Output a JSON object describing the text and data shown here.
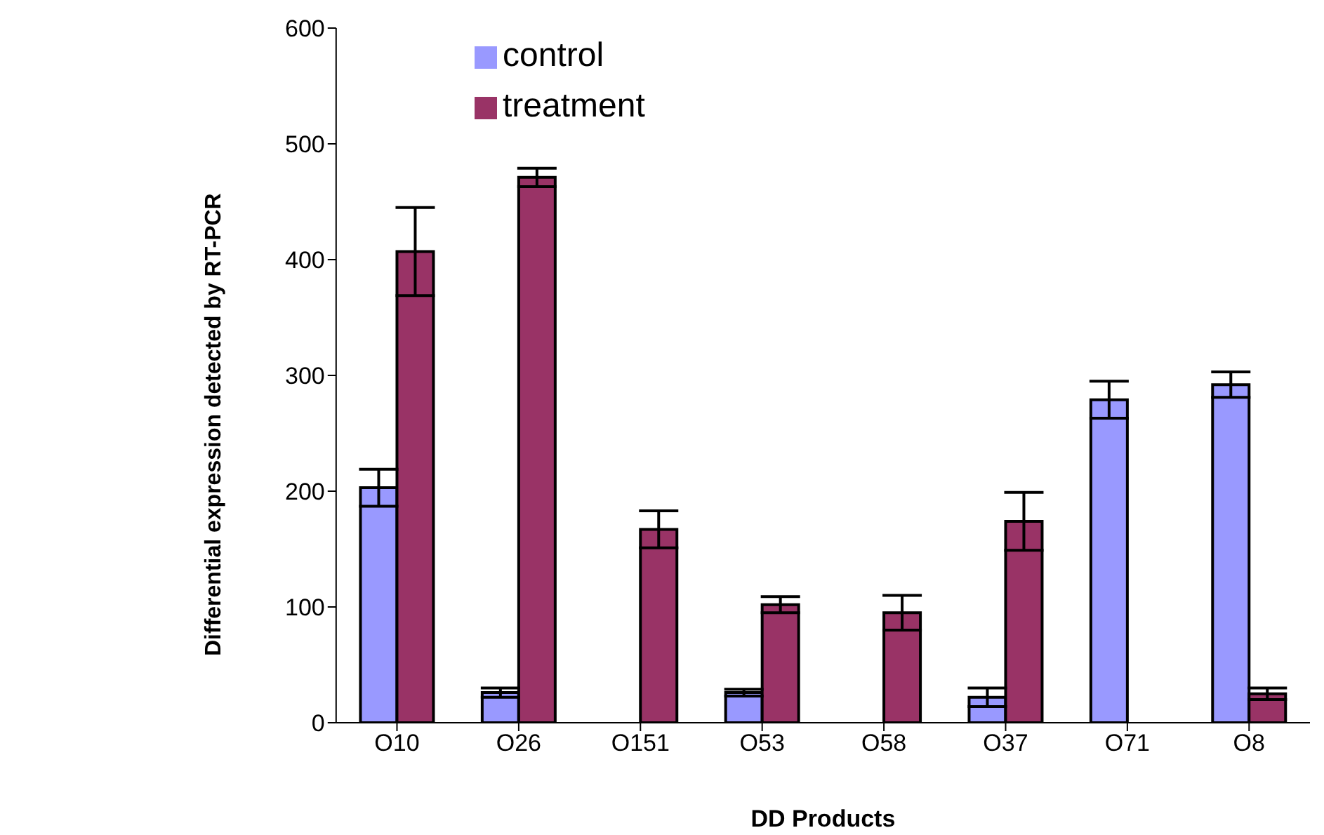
{
  "chart_data": {
    "type": "bar",
    "xlabel": "DD Products",
    "ylabel": "Differential expression detected by RT-PCR",
    "categories": [
      "O10",
      "O26",
      "O151",
      "O53",
      "O58",
      "O37",
      "O71",
      "O8"
    ],
    "series": [
      {
        "name": "control",
        "color": "#9999ff",
        "values": [
          203,
          26,
          0,
          26,
          0,
          22,
          279,
          292
        ],
        "errors": [
          16,
          4,
          0,
          3,
          0,
          8,
          16,
          11
        ]
      },
      {
        "name": "treatment",
        "color": "#993366",
        "values": [
          407,
          471,
          167,
          102,
          95,
          174,
          0,
          25
        ],
        "errors": [
          38,
          8,
          16,
          7,
          15,
          25,
          0,
          5
        ]
      }
    ],
    "ylim": [
      0,
      600
    ],
    "yticks": [
      0,
      100,
      200,
      300,
      400,
      500,
      600
    ],
    "grid": false,
    "legend": "top"
  }
}
